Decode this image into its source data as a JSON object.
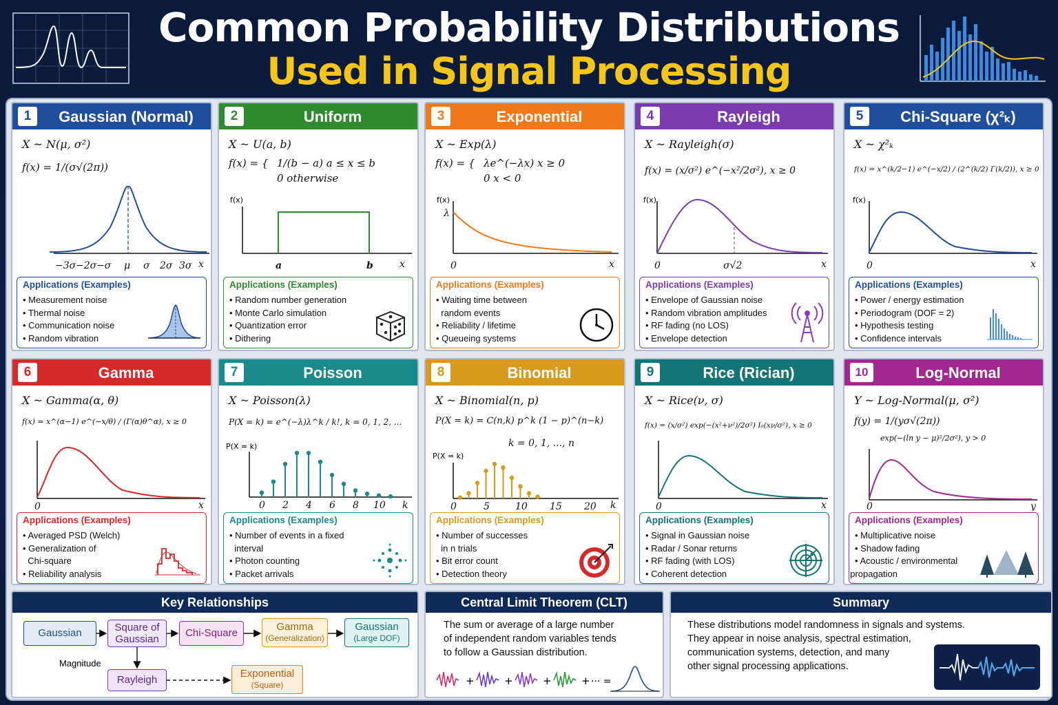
{
  "header": {
    "title_line1": "Common Probability Distributions",
    "title_line2": "Used in Signal Processing"
  },
  "apps_title": "Applications (Examples)",
  "cards": [
    {
      "num": "1",
      "title": "Gaussian (Normal)",
      "color": "#1f4e9c",
      "dist": "X ~ N(μ, σ²)",
      "formula": "f(x) = 1/(σ√(2π))",
      "axis": [
        "−3σ",
        "−2σ",
        "−σ",
        "μ",
        "σ",
        "2σ",
        "3σ",
        "x"
      ],
      "apps": [
        "Measurement noise",
        "Thermal noise",
        "Communication noise",
        "Random vibration"
      ],
      "icon": "bell-curve-icon"
    },
    {
      "num": "2",
      "title": "Uniform",
      "color": "#2e8b2e",
      "dist": "X ~ U(a, b)",
      "formula_top": "1/(b − a)   a ≤ x ≤ b",
      "formula_bot": "0   otherwise",
      "ylabel": "f(x)",
      "axis": [
        "a",
        "b",
        "x"
      ],
      "apps": [
        "Random number generation",
        "Monte Carlo simulation",
        "Quantization error",
        "Dithering"
      ],
      "icon": "dice-icon"
    },
    {
      "num": "3",
      "title": "Exponential",
      "color": "#f07a1a",
      "dist": "X ~ Exp(λ)",
      "formula_top": "λe^(−λx)   x ≥ 0",
      "formula_bot": "0   x < 0",
      "ylabel": "f(x)",
      "axis": [
        "λ",
        "0",
        "x"
      ],
      "apps": [
        "Waiting time between",
        "random events",
        "Reliability / lifetime",
        "Queueing systems"
      ],
      "icon": "clock-icon"
    },
    {
      "num": "4",
      "title": "Rayleigh",
      "color": "#7b3aad",
      "dist": "X ~ Rayleigh(σ)",
      "formula": "f(x) = (x/σ²) e^(−x²/2σ²),   x ≥ 0",
      "ylabel": "f(x)",
      "axis": [
        "0",
        "σ√2",
        "x"
      ],
      "apps": [
        "Envelope of Gaussian noise",
        "Random vibration amplitudes",
        "RF fading (no LOS)",
        "Envelope detection"
      ],
      "icon": "antenna-icon"
    },
    {
      "num": "5",
      "title": "Chi-Square (χ²ₖ)",
      "color": "#1f4e9c",
      "dist": "X ~ χ²ₖ",
      "formula": "f(x) = x^(k/2−1) e^(−x/2) / (2^(k/2) Γ(k/2)),   x ≥ 0",
      "ylabel": "f(x)",
      "axis": [
        "0",
        "x"
      ],
      "apps": [
        "Power / energy estimation",
        "Periodogram (DOF = 2)",
        "Hypothesis testing",
        "Confidence intervals"
      ],
      "icon": "histogram-icon"
    },
    {
      "num": "6",
      "title": "Gamma",
      "color": "#d42a2a",
      "dist": "X ~ Gamma(α, θ)",
      "formula": "f(x) = x^(α−1) e^(−x/θ) / (Γ(α)θ^α),   x ≥ 0",
      "axis": [
        "0",
        "x"
      ],
      "apps": [
        "Averaged PSD (Welch)",
        "Generalization of",
        "Chi-square",
        "Reliability analysis"
      ],
      "icon": "red-histogram-icon"
    },
    {
      "num": "7",
      "title": "Poisson",
      "color": "#1a8a8a",
      "dist": "X ~ Poisson(λ)",
      "formula": "P(X = k) = e^(−λ)λ^k / k!,   k = 0, 1, 2, ...",
      "ylabel": "P(X = k)",
      "axis": [
        "0",
        "2",
        "4",
        "6",
        "8",
        "10",
        "k"
      ],
      "apps": [
        "Number of events in a fixed",
        "interval",
        "Photon counting",
        "Packet arrivals"
      ],
      "icon": "dots-icon"
    },
    {
      "num": "8",
      "title": "Binomial",
      "color": "#d89a1a",
      "dist": "X ~ Binomial(n, p)",
      "formula": "P(X = k) = C(n,k) p^k (1 − p)^(n−k)",
      "formula2": "k = 0, 1, ..., n",
      "ylabel": "P(X = k)",
      "axis": [
        "0",
        "5",
        "10",
        "15",
        "20",
        "k"
      ],
      "apps": [
        "Number of successes",
        "in n trials",
        "Bit error count",
        "Detection theory"
      ],
      "icon": "target-icon"
    },
    {
      "num": "9",
      "title": "Rice (Rician)",
      "color": "#137575",
      "dist": "X ~ Rice(ν, σ)",
      "formula": "f(x) = (x/σ²) exp(−(x²+ν²)/2σ²) I₀(xν/σ²),  x ≥ 0",
      "axis": [
        "0",
        "x"
      ],
      "apps": [
        "Signal in Gaussian noise",
        "Radar / Sonar returns",
        "RF fading (with LOS)",
        "Coherent detection"
      ],
      "icon": "radar-icon"
    },
    {
      "num": "10",
      "title": "Log-Normal",
      "color": "#a0288f",
      "dist": "Y ~ Log-Normal(μ, σ²)",
      "formula": "f(y) = 1/(yσ√(2π))",
      "formula2": "exp(−(ln y − μ)²/2σ²),   y > 0",
      "axis": [
        "0",
        "y"
      ],
      "apps": [
        "Multiplicative noise",
        "Shadow fading",
        "Acoustic / environmental",
        "propagation"
      ],
      "icon": "trees-icon"
    }
  ],
  "relationships": {
    "title": "Key Relationships",
    "gaussian": "Gaussian",
    "square_of": "Square of",
    "square_of2": "Gaussian",
    "chi_square": "Chi-Square",
    "gamma": "Gamma",
    "gamma_sub": "(Generalization)",
    "gaussian_large": "Gaussian",
    "gaussian_large_sub": "(Large DOF)",
    "magnitude": "Magnitude",
    "rayleigh": "Rayleigh",
    "exponential": "Exponential",
    "exponential_sub": "(Square)"
  },
  "clt": {
    "title": "Central Limit Theorem (CLT)",
    "line1": "The sum or average of a large number",
    "line2": "of independent random variables tends",
    "line3": "to follow a Gaussian distribution.",
    "plus": "+",
    "dots": "··· =",
    "colors": [
      "#d4306a",
      "#6a3ad4",
      "#8a3ad4",
      "#2e9a3a"
    ]
  },
  "summary": {
    "title": "Summary",
    "line1": "These distributions model randomness in signals and systems.",
    "line2": "They appear in noise analysis, spectral estimation,",
    "line3": "communication systems, detection, and many",
    "line4": "other signal processing applications."
  },
  "chart_data": [
    {
      "type": "bar",
      "name": "poisson-pmf",
      "categories": [
        0,
        1,
        2,
        3,
        4,
        5,
        6,
        7,
        8,
        9,
        10,
        11
      ],
      "values": [
        0.02,
        0.07,
        0.15,
        0.2,
        0.2,
        0.16,
        0.1,
        0.06,
        0.03,
        0.015,
        0.007,
        0.003
      ]
    },
    {
      "type": "bar",
      "name": "binomial-pmf",
      "categories": [
        1,
        3,
        5,
        7,
        9,
        11,
        13,
        15,
        17,
        19
      ],
      "values": [
        0.005,
        0.03,
        0.09,
        0.16,
        0.2,
        0.18,
        0.12,
        0.07,
        0.03,
        0.01
      ]
    }
  ]
}
